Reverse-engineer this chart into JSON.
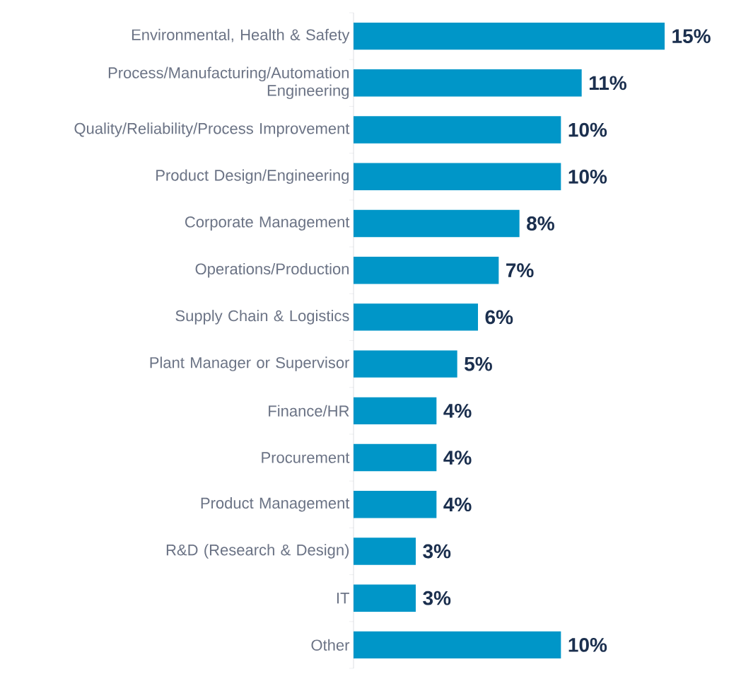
{
  "chart_data": {
    "type": "bar",
    "orientation": "horizontal",
    "categories": [
      "Environmental, Health & Safety",
      "Process/Manufacturing/Automation Engineering",
      "Quality/Reliability/Process Improvement",
      "Product Design/Engineering",
      "Corporate Management",
      "Operations/Production",
      "Supply Chain & Logistics",
      "Plant Manager or Supervisor",
      "Finance/HR",
      "Procurement",
      "Product Management",
      "R&D (Research & Design)",
      "IT",
      "Other"
    ],
    "values": [
      15,
      11,
      10,
      10,
      8,
      7,
      6,
      5,
      4,
      4,
      4,
      3,
      3,
      10
    ],
    "value_labels": [
      "15%",
      "11%",
      "10%",
      "10%",
      "8%",
      "7%",
      "6%",
      "5%",
      "4%",
      "4%",
      "4%",
      "3%",
      "3%",
      "10%"
    ],
    "color": "#0096c8"
  }
}
